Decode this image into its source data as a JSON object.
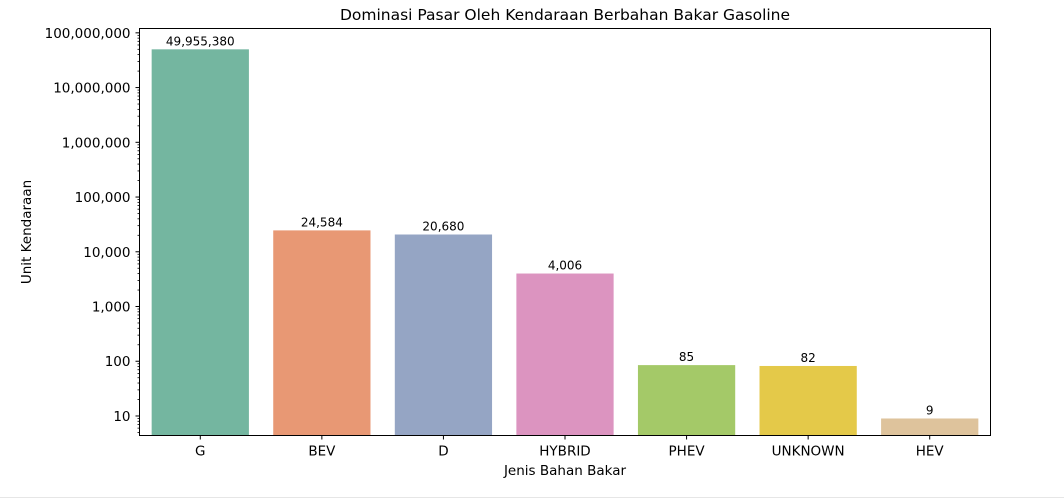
{
  "chart_data": {
    "type": "bar",
    "title": "Dominasi Pasar Oleh Kendaraan Berbahan Bakar Gasoline",
    "xlabel": "Jenis Bahan Bakar",
    "ylabel": "Unit Kendaraan",
    "yscale": "log",
    "ylim": [
      4.4,
      120000000
    ],
    "yticks": [
      10,
      100,
      1000,
      10000,
      100000,
      1000000,
      10000000,
      100000000
    ],
    "ytick_labels": [
      "10",
      "100",
      "1,000",
      "10,000",
      "100,000",
      "1,000,000",
      "10,000,000",
      "100,000,000"
    ],
    "categories": [
      "G",
      "BEV",
      "D",
      "HYBRID",
      "PHEV",
      "UNKNOWN",
      "HEV"
    ],
    "values": [
      49955380,
      24584,
      20680,
      4006,
      85,
      82,
      9
    ],
    "data_labels": [
      "49,955,380",
      "24,584",
      "20,680",
      "4,006",
      "85",
      "82",
      "9"
    ],
    "colors": [
      "#74b6a0",
      "#e89874",
      "#95a5c4",
      "#dc94c0",
      "#a4c968",
      "#e4c949",
      "#dec39c"
    ],
    "grid": false,
    "legend": "none"
  }
}
